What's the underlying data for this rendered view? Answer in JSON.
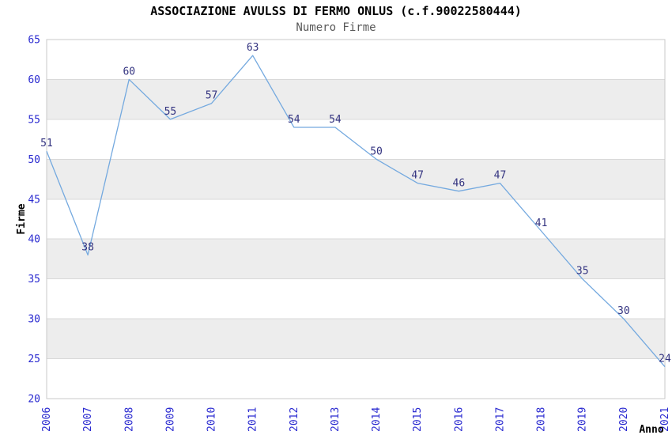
{
  "chart_data": {
    "type": "line",
    "title": "ASSOCIAZIONE AVULSS DI FERMO ONLUS (c.f.90022580444)",
    "subtitle": "Numero Firme",
    "xlabel": "Anno",
    "ylabel": "Firme",
    "categories": [
      "2006",
      "2007",
      "2008",
      "2009",
      "2010",
      "2011",
      "2012",
      "2013",
      "2014",
      "2015",
      "2016",
      "2017",
      "2018",
      "2019",
      "2020",
      "2021"
    ],
    "values": [
      51,
      38,
      60,
      55,
      57,
      63,
      54,
      54,
      50,
      47,
      46,
      47,
      41,
      35,
      30,
      24
    ],
    "ylim": [
      20,
      65
    ],
    "ytick_step": 5,
    "yticks": [
      20,
      25,
      30,
      35,
      40,
      45,
      50,
      55,
      60,
      65
    ],
    "grid": "horizontal-alternating-bands",
    "legend": "none",
    "markers": "none",
    "data_labels": "above-points",
    "colors": {
      "line": "#74a9df",
      "data_label": "#333380",
      "tick_label": "#2a2ad0",
      "band": "#ededed",
      "gridline": "#d9d9d9",
      "border": "#c8c8c8",
      "title": "#000000",
      "subtitle": "#595959",
      "axis_label": "#000000",
      "background": "#ffffff"
    }
  }
}
